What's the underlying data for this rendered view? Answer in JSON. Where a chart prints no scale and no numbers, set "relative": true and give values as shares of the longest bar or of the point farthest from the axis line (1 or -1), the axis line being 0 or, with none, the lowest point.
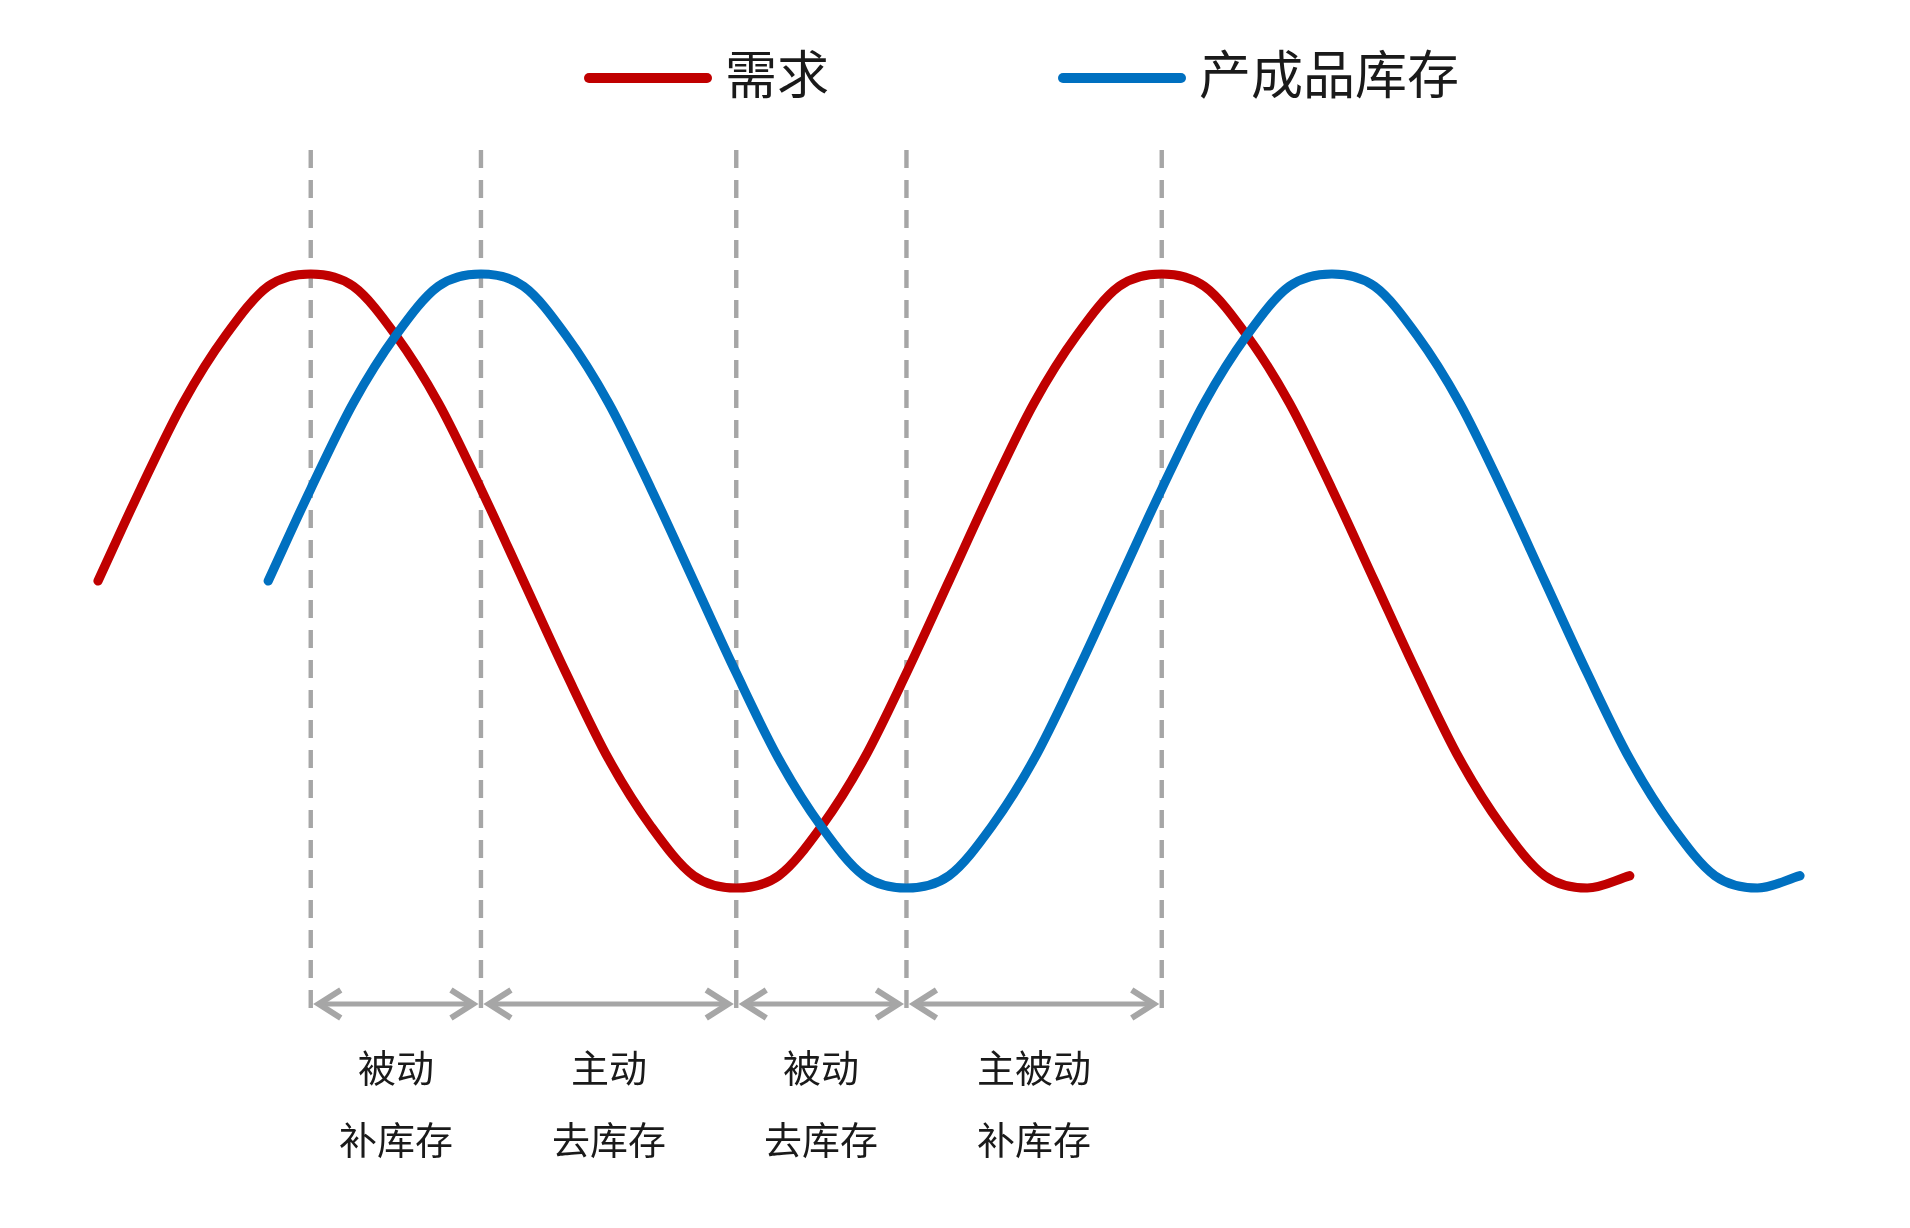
{
  "chart_data": {
    "type": "line",
    "relative": true,
    "categories": [
      null,
      null,
      null,
      null,
      null,
      null,
      null,
      null,
      null,
      null,
      null,
      null,
      null,
      null,
      null,
      null,
      null,
      null,
      null,
      null,
      null,
      null,
      null,
      null,
      null,
      null,
      null,
      null,
      null,
      null,
      null,
      null,
      null,
      null,
      null,
      null,
      null,
      null,
      null,
      null,
      null
    ],
    "series": [
      {
        "name": "需求",
        "color": "#c00000",
        "values": [
          0.5,
          0.65,
          0.79,
          0.9,
          0.98,
          1,
          0.98,
          0.9,
          0.79,
          0.65,
          0.5,
          0.35,
          0.21,
          0.1,
          0.02,
          0,
          0.02,
          0.1,
          0.21,
          0.35,
          0.5,
          0.65,
          0.79,
          0.9,
          0.98,
          1,
          0.98,
          0.9,
          0.79,
          0.65,
          0.5,
          0.35,
          0.21,
          0.1,
          0.02,
          0,
          0.02,
          null,
          null,
          null,
          null
        ]
      },
      {
        "name": "产成品库存",
        "color": "#0070c0",
        "values": [
          null,
          null,
          null,
          null,
          0.5,
          0.65,
          0.79,
          0.9,
          0.98,
          1,
          0.98,
          0.9,
          0.79,
          0.65,
          0.5,
          0.35,
          0.21,
          0.1,
          0.02,
          0,
          0.02,
          0.1,
          0.21,
          0.35,
          0.5,
          0.65,
          0.79,
          0.9,
          0.98,
          1,
          0.98,
          0.9,
          0.79,
          0.65,
          0.5,
          0.35,
          0.21,
          0.1,
          0.02,
          0,
          0.02
        ]
      }
    ],
    "annotations": [
      "被动补库存",
      "主动去库存",
      "被动去库存",
      "主被动补库存"
    ],
    "grid": "x",
    "legend": "top"
  }
}
